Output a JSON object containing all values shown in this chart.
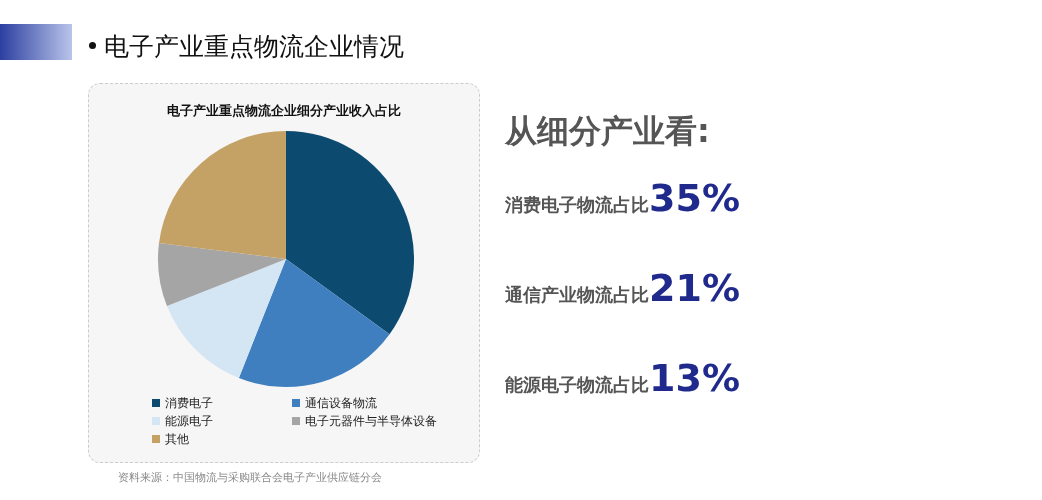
{
  "chart_data": {
    "type": "pie",
    "title": "电子产业重点物流企业情况",
    "subtitle": "电子产业重点物流企业细分产业收入占比",
    "categories": [
      "消费电子",
      "通信设备物流",
      "能源电子",
      "电子元器件与半导体设备",
      "其他"
    ],
    "values": [
      35,
      21,
      13,
      8,
      23
    ],
    "colors": [
      "#0d4a70",
      "#3f7fbf",
      "#d4e5f4",
      "#a5a5a5",
      "#c4a266"
    ],
    "legend": "bottom",
    "annotations": [
      "从细分产业看:",
      "消费电子物流占比35%",
      "通信产业物流占比21%",
      "能源电子物流占比13%",
      "资料来源：中国物流与采购联合会电子产业供应链分会"
    ]
  }
}
